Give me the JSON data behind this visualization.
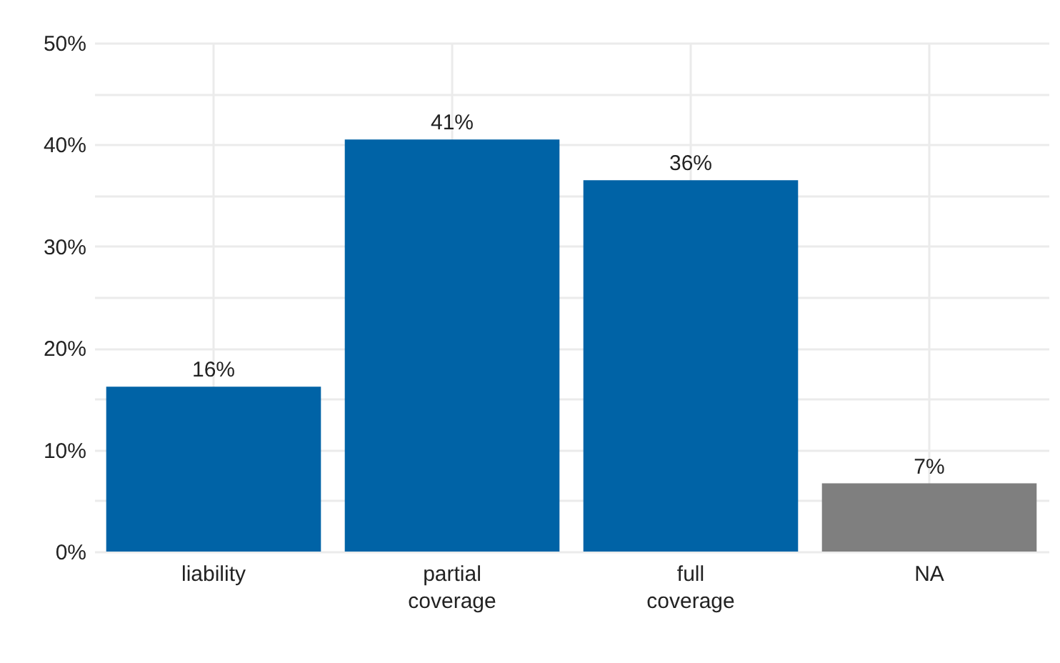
{
  "chart_data": {
    "type": "bar",
    "categories": [
      "liability",
      "partial coverage",
      "full coverage",
      "NA"
    ],
    "values": [
      16.2,
      40.5,
      36.5,
      6.7
    ],
    "colors": [
      "#0063a6",
      "#0063a6",
      "#0063a6",
      "#7f7f7f"
    ],
    "value_labels": [
      "16%",
      "41%",
      "36%",
      "7%"
    ],
    "ylim": [
      0,
      50
    ],
    "yticks": [
      {
        "value": 0,
        "label": "0%"
      },
      {
        "value": 5,
        "label": null
      },
      {
        "value": 10,
        "label": "10%"
      },
      {
        "value": 15,
        "label": null
      },
      {
        "value": 20,
        "label": "20%"
      },
      {
        "value": 25,
        "label": null
      },
      {
        "value": 30,
        "label": "30%"
      },
      {
        "value": 35,
        "label": null
      },
      {
        "value": 40,
        "label": "40%"
      },
      {
        "value": 45,
        "label": null
      },
      {
        "value": 50,
        "label": "50%"
      }
    ],
    "grid": true
  }
}
